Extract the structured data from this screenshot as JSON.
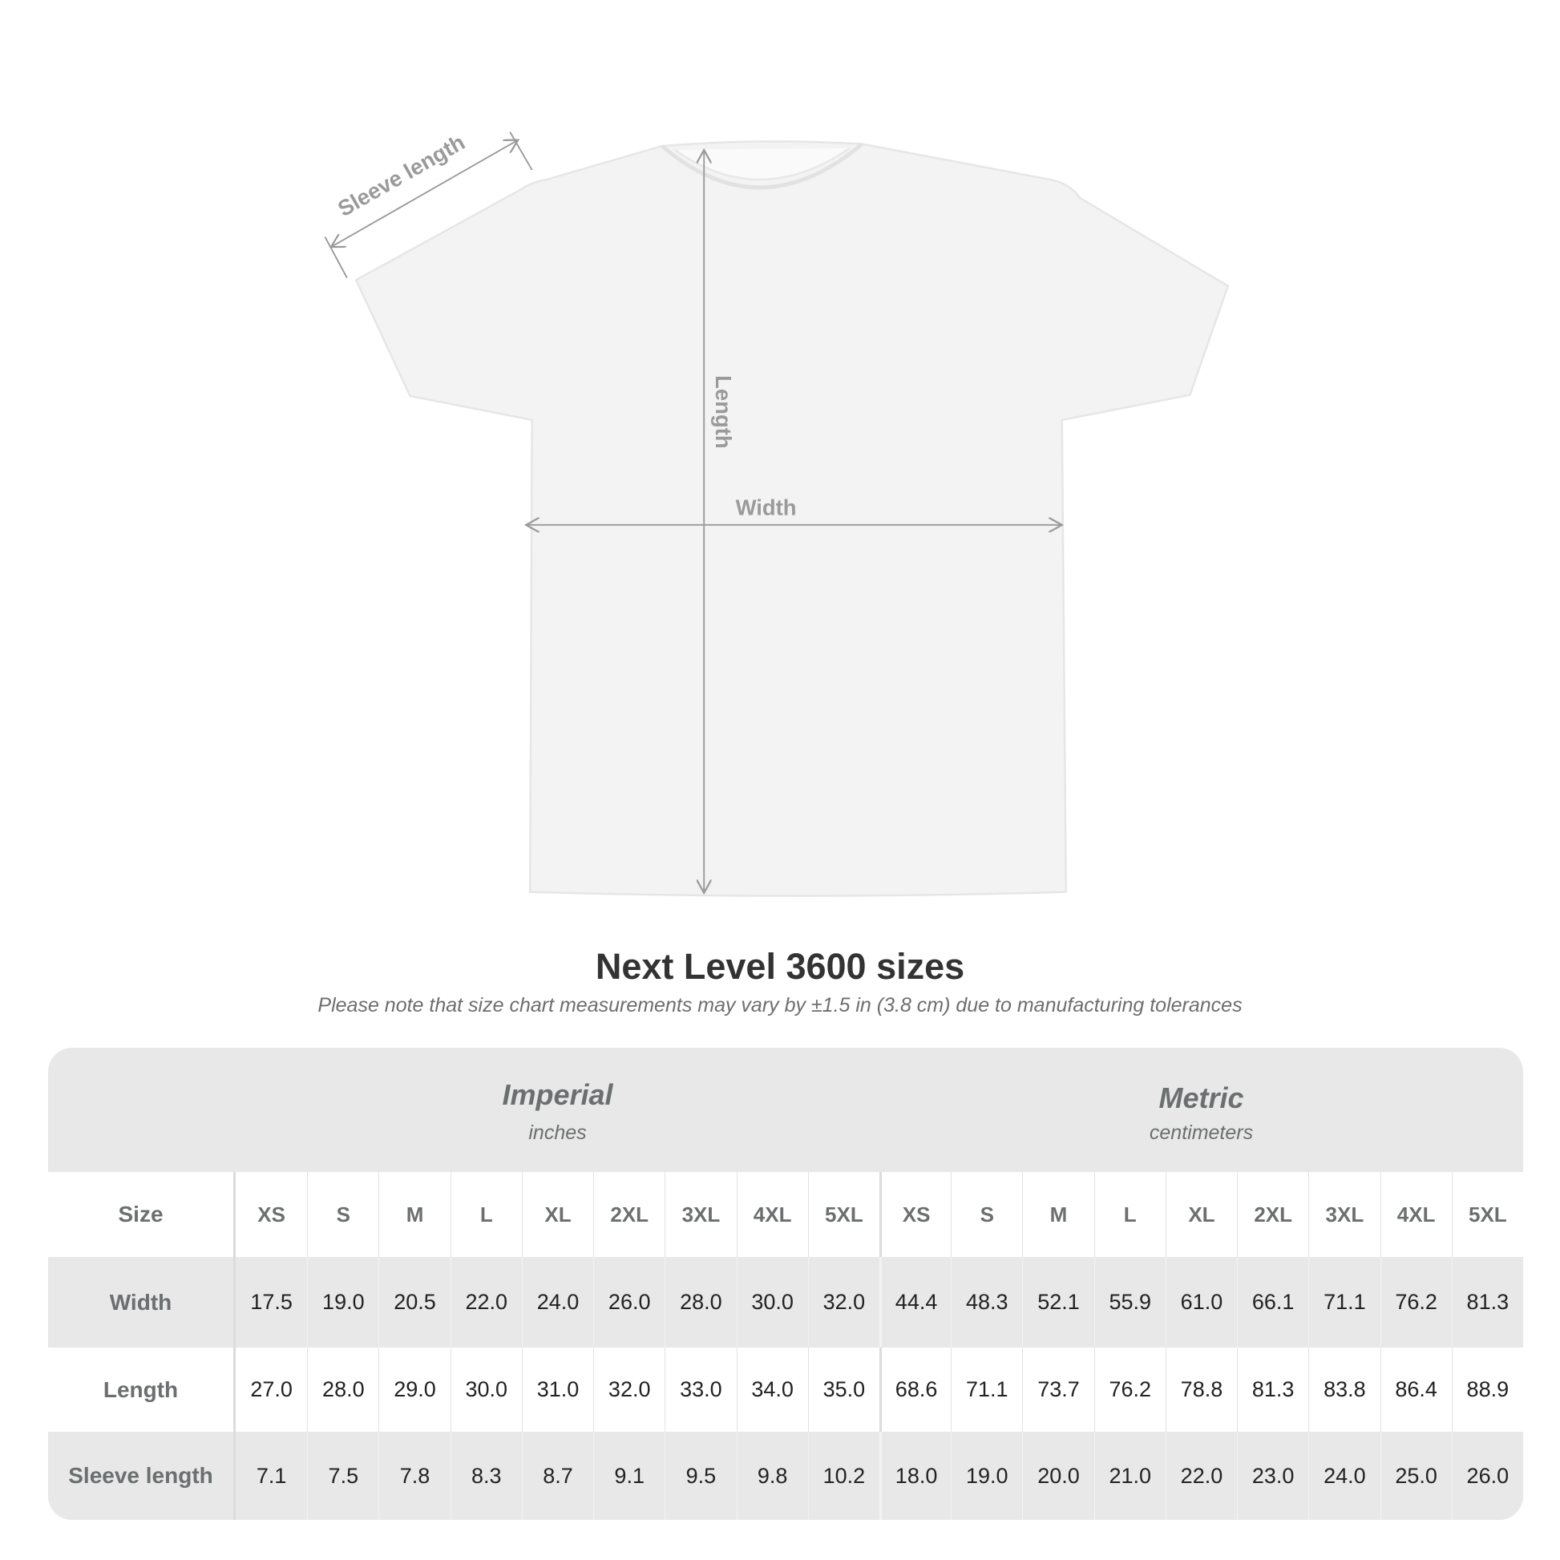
{
  "diagram": {
    "sleeve_label": "Sleeve length",
    "length_label": "Length",
    "width_label": "Width",
    "garment_color": "#f3f3f3",
    "annotation_color": "#9a9a9a"
  },
  "title": "Next Level 3600 sizes",
  "note": "Please note that size chart measurements may vary by ±1.5 in (3.8 cm) due to manufacturing tolerances",
  "table": {
    "imperial": {
      "label": "Imperial",
      "unit": "inches"
    },
    "metric": {
      "label": "Metric",
      "unit": "centimeters"
    },
    "rows": [
      {
        "label": "Size",
        "values": [
          "XS",
          "S",
          "M",
          "L",
          "XL",
          "2XL",
          "3XL",
          "4XL",
          "5XL",
          "XS",
          "S",
          "M",
          "L",
          "XL",
          "2XL",
          "3XL",
          "4XL",
          "5XL"
        ]
      },
      {
        "label": "Width",
        "values": [
          "17.5",
          "19.0",
          "20.5",
          "22.0",
          "24.0",
          "26.0",
          "28.0",
          "30.0",
          "32.0",
          "44.4",
          "48.3",
          "52.1",
          "55.9",
          "61.0",
          "66.1",
          "71.1",
          "76.2",
          "81.3"
        ]
      },
      {
        "label": "Length",
        "values": [
          "27.0",
          "28.0",
          "29.0",
          "30.0",
          "31.0",
          "32.0",
          "33.0",
          "34.0",
          "35.0",
          "68.6",
          "71.1",
          "73.7",
          "76.2",
          "78.8",
          "81.3",
          "83.8",
          "86.4",
          "88.9"
        ]
      },
      {
        "label": "Sleeve length",
        "values": [
          "7.1",
          "7.5",
          "7.8",
          "8.3",
          "8.7",
          "9.1",
          "9.5",
          "9.8",
          "10.2",
          "18.0",
          "19.0",
          "20.0",
          "21.0",
          "22.0",
          "23.0",
          "24.0",
          "25.0",
          "26.0"
        ]
      }
    ]
  }
}
